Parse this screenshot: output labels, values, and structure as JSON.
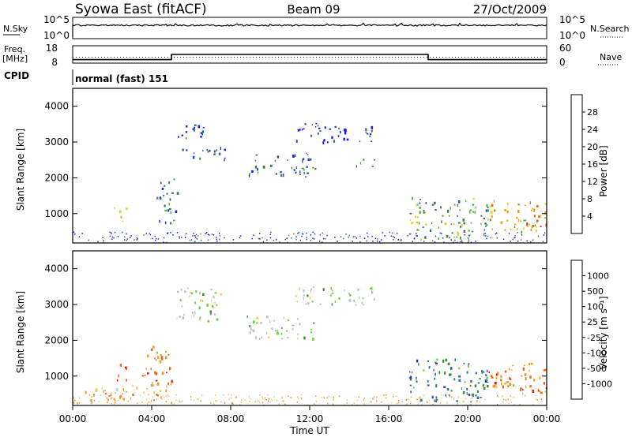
{
  "header": {
    "station": "Syowa East (fitACF)",
    "beam": "Beam 09",
    "date": "27/Oct/2009"
  },
  "noise_panel": {
    "left_label": "N.Sky",
    "left_ticks": [
      "10^5",
      "10^0"
    ],
    "right_label": "N.Search",
    "right_ticks": [
      "10^5",
      "10^0"
    ]
  },
  "freq_panel": {
    "left_label_1": "Freq.",
    "left_label_2": "[MHz]",
    "left_ticks": [
      "18",
      "8"
    ],
    "right_label": "Nave",
    "right_ticks": [
      "60",
      "0"
    ]
  },
  "cpid": {
    "label": "CPID",
    "text": "normal (fast) 151"
  },
  "power_panel": {
    "ylabel": "Slant Range [km]",
    "yticks": [
      "4000",
      "3000",
      "2000",
      "1000"
    ],
    "colorbar_label": "Power [dB]",
    "colorbar_ticks": [
      "28",
      "24",
      "20",
      "16",
      "12",
      "8",
      "4"
    ]
  },
  "velocity_panel": {
    "ylabel": "Slant Range [km]",
    "yticks": [
      "4000",
      "3000",
      "2000",
      "1000"
    ],
    "colorbar_label": "Velocity [m s⁻¹]",
    "colorbar_ticks": [
      "1000",
      "500",
      "100",
      "25",
      "-25",
      "-100",
      "-500",
      "-1000"
    ]
  },
  "time_axis": {
    "label": "Time UT",
    "ticks": [
      "00:00",
      "04:00",
      "08:00",
      "12:00",
      "16:00",
      "20:00",
      "00:00"
    ]
  },
  "colors": {
    "power_scale": [
      "#1a1aff",
      "#2c4fa6",
      "#3b7a55",
      "#4faf3a",
      "#d6d21c",
      "#f0a010",
      "#f06a08",
      "#e81a10"
    ],
    "velocity_scale": [
      "#1a2fb8",
      "#2f6aa8",
      "#3c8a3a",
      "#6ed13a",
      "#c0c0c0",
      "#f4c060",
      "#f09a20",
      "#f06410",
      "#e81410"
    ]
  },
  "chart_data": [
    {
      "type": "line",
      "title": "N.Sky / N.Search",
      "x": [
        "00:00",
        "04:00",
        "08:00",
        "12:00",
        "16:00",
        "20:00",
        "00:00"
      ],
      "series": [
        {
          "name": "N.Sky",
          "values": [
            3000,
            3000,
            3000,
            3000,
            3000,
            3000,
            3000
          ]
        }
      ],
      "ylim": [
        "10^0",
        "10^5"
      ]
    },
    {
      "type": "line",
      "title": "Freq. [MHz] / Nave",
      "x": [
        "00:00",
        "05:00",
        "05:00",
        "18:00",
        "18:00",
        "24:00"
      ],
      "series": [
        {
          "name": "Freq.",
          "values": [
            10,
            10,
            13,
            13,
            10,
            10
          ]
        },
        {
          "name": "Nave",
          "values": [
            20,
            20,
            20,
            20,
            20,
            20
          ]
        }
      ],
      "ylim": [
        8,
        18
      ]
    },
    {
      "type": "heatmap",
      "title": "Power [dB]",
      "xlabel": "Time UT",
      "ylabel": "Slant Range [km]",
      "x_range_hours": [
        0,
        24
      ],
      "ylim": [
        180,
        4500
      ],
      "zlim": [
        0,
        32
      ],
      "regions": [
        {
          "t0": 2.0,
          "t1": 2.7,
          "r0": 800,
          "r1": 1200,
          "level": 20
        },
        {
          "t0": 4.2,
          "t1": 5.3,
          "r0": 750,
          "r1": 2000,
          "level": 8
        },
        {
          "t0": 5.2,
          "t1": 7.2,
          "r0": 3100,
          "r1": 3500,
          "level": 4
        },
        {
          "t0": 5.5,
          "t1": 7.8,
          "r0": 2500,
          "r1": 2900,
          "level": 8
        },
        {
          "t0": 8.8,
          "t1": 12.3,
          "r0": 2050,
          "r1": 2700,
          "level": 8
        },
        {
          "t0": 11.2,
          "t1": 15.3,
          "r0": 3000,
          "r1": 3550,
          "level": 4
        },
        {
          "t0": 14.3,
          "t1": 15.3,
          "r0": 2300,
          "r1": 2600,
          "level": 8
        },
        {
          "t0": 17.0,
          "t1": 21.0,
          "r0": 300,
          "r1": 1500,
          "level": 12
        },
        {
          "t0": 21.0,
          "t1": 24.0,
          "r0": 500,
          "r1": 1400,
          "level": 20
        },
        {
          "t0": 22.5,
          "t1": 24.0,
          "r0": 550,
          "r1": 850,
          "level": 28
        }
      ]
    },
    {
      "type": "heatmap",
      "title": "Velocity [m s⁻¹]",
      "xlabel": "Time UT",
      "ylabel": "Slant Range [km]",
      "x_range_hours": [
        0,
        24
      ],
      "ylim": [
        180,
        4500
      ],
      "zlim": [
        -1000,
        1000
      ],
      "regions": [
        {
          "t0": 2.0,
          "t1": 2.7,
          "r0": 850,
          "r1": 1350,
          "level": -1000
        },
        {
          "t0": 3.5,
          "t1": 5.0,
          "r0": 800,
          "r1": 1900,
          "level": -500
        },
        {
          "t0": 0.5,
          "t1": 5.0,
          "r0": 250,
          "r1": 800,
          "level": -100
        },
        {
          "t0": 5.2,
          "t1": 7.5,
          "r0": 2500,
          "r1": 3500,
          "level": 0
        },
        {
          "t0": 8.8,
          "t1": 12.3,
          "r0": 2050,
          "r1": 2700,
          "level": 0
        },
        {
          "t0": 11.2,
          "t1": 15.3,
          "r0": 3000,
          "r1": 3550,
          "level": 0
        },
        {
          "t0": 17.0,
          "t1": 21.0,
          "r0": 300,
          "r1": 1500,
          "level": 100
        },
        {
          "t0": 21.0,
          "t1": 24.0,
          "r0": 500,
          "r1": 1400,
          "level": -500
        },
        {
          "t0": 22.5,
          "t1": 24.0,
          "r0": 550,
          "r1": 850,
          "level": -1000
        }
      ]
    }
  ]
}
